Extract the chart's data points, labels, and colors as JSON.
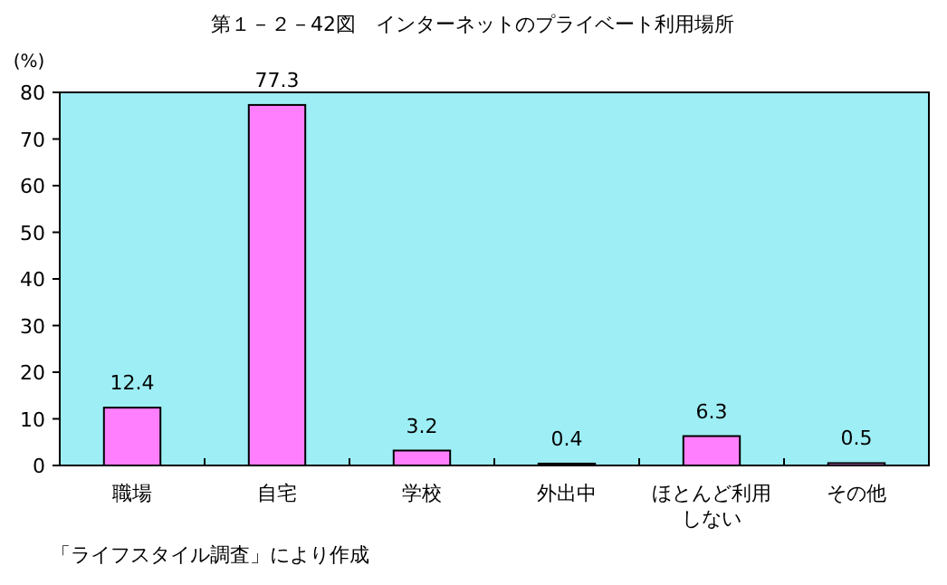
{
  "chart_data": {
    "type": "bar",
    "title": "第１－２－42図　インターネットのプライベート利用場所",
    "ylabel": "(%)",
    "categories": [
      "職場",
      "自宅",
      "学校",
      "外出中",
      "ほとんど利用しない",
      "その他"
    ],
    "values": [
      12.4,
      77.3,
      3.2,
      0.4,
      6.3,
      0.5
    ],
    "color": "#ff7fff",
    "ylim": [
      0,
      80
    ],
    "yticks": [
      0,
      10,
      20,
      30,
      40,
      50,
      60,
      70,
      80
    ],
    "data_labels": true,
    "grid": false,
    "annotations": [
      "「ライフスタイル調査」により作成"
    ]
  }
}
